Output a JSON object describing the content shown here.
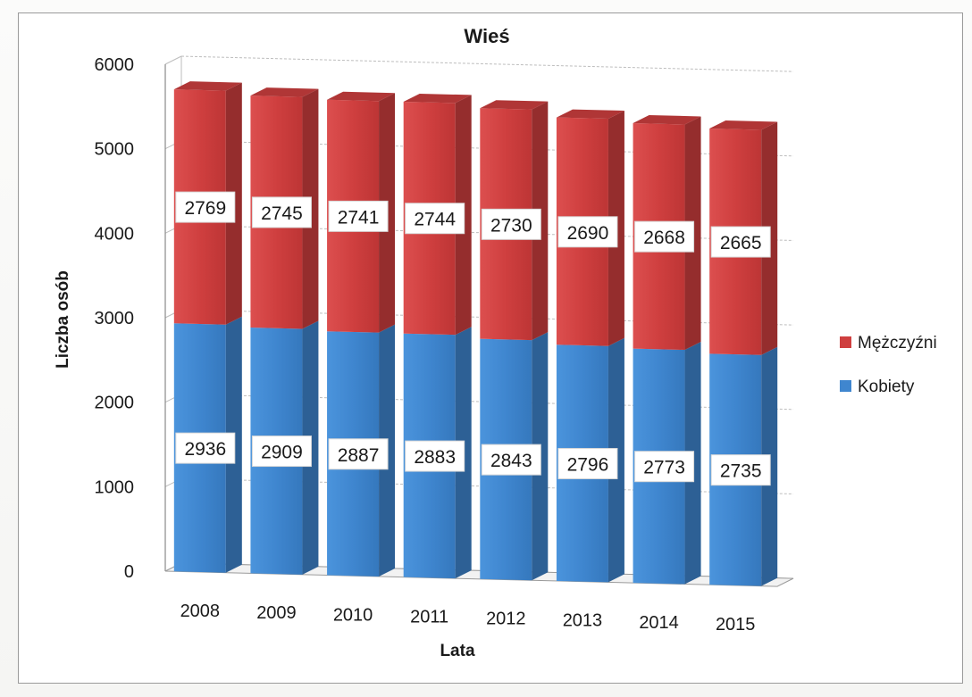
{
  "chart_data": {
    "type": "bar",
    "stacked": true,
    "title": "Wieś",
    "xlabel": "Lata",
    "ylabel": "Liczba osób",
    "categories": [
      "2008",
      "2009",
      "2010",
      "2011",
      "2012",
      "2013",
      "2014",
      "2015"
    ],
    "ylim": [
      0,
      6000
    ],
    "yticks": [
      0,
      1000,
      2000,
      3000,
      4000,
      5000,
      6000
    ],
    "grid": true,
    "legend_position": "right",
    "series": [
      {
        "name": "Kobiety",
        "color": "#3f86cf",
        "values": [
          2936,
          2909,
          2887,
          2883,
          2843,
          2796,
          2773,
          2735
        ]
      },
      {
        "name": "Mężczyźni",
        "color": "#cf3f3f",
        "values": [
          2769,
          2745,
          2741,
          2744,
          2730,
          2690,
          2668,
          2665
        ]
      }
    ]
  }
}
